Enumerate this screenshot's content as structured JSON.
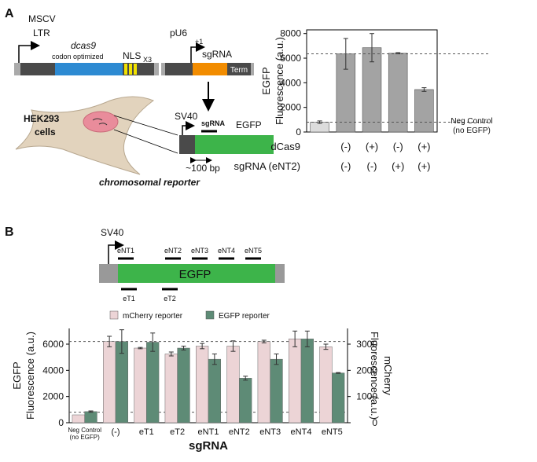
{
  "panel_labels": [
    "A",
    "B"
  ],
  "diagram_a": {
    "promoter_1": [
      "MSCV",
      "LTR"
    ],
    "gene": "dcas9",
    "gene_note": "codon optimized",
    "nls": "NLS",
    "nls_sub": "X3",
    "promoter_2": "pU6",
    "tss": "+1",
    "guide": "sgRNA",
    "terminator": "Term",
    "cell": [
      "HEK293",
      "cells"
    ],
    "promoter_3": "SV40",
    "target": "sgRNA",
    "reporter": "EGFP",
    "distance": "~100 bp",
    "caption": "chromosomal reporter"
  },
  "diagram_b": {
    "promoter": "SV40",
    "reporter": "EGFP",
    "top_targets": [
      "eNT1",
      "eNT2",
      "eNT3",
      "eNT4",
      "eNT5"
    ],
    "bottom_targets": [
      "eT1",
      "eT2"
    ]
  },
  "chart_data": [
    {
      "type": "bar",
      "ylabel": [
        "EGFP",
        "Fluorescence (a.u.)"
      ],
      "category_rows": [
        {
          "name": "dCas9",
          "labels": [
            null,
            "(-)",
            "(+)",
            "(-)",
            "(+)"
          ]
        },
        {
          "name": "sgRNA (eNT2)",
          "labels": [
            null,
            "(-)",
            "(-)",
            "(+)",
            "(+)"
          ]
        }
      ],
      "values": [
        800,
        6350,
        6850,
        6400,
        3450
      ],
      "errors": [
        100,
        1250,
        1150,
        50,
        150
      ],
      "colors": [
        "#dcdcdc",
        "#a3a3a3",
        "#a3a3a3",
        "#a3a3a3",
        "#a3a3a3"
      ],
      "ylim": [
        0,
        8300
      ],
      "yticks": [
        0,
        2000,
        4000,
        6000,
        8000
      ],
      "reference_lines": [
        6350,
        800
      ],
      "annotation": [
        "Neg Control",
        "(no EGFP)"
      ]
    },
    {
      "type": "grouped_bar",
      "xlabel": "sgRNA",
      "ylabel": [
        "EGFP",
        "Fluorescence (a.u.)"
      ],
      "y2label": [
        "mCherry",
        "Fluorescence (a.u.)"
      ],
      "categories": [
        [
          "Neg Control",
          "(no EGFP)"
        ],
        "(-)",
        "eT1",
        "eT2",
        "eNT1",
        "eNT2",
        "eNT3",
        "eNT4",
        "eNT5"
      ],
      "series": [
        {
          "name": "mCherry reporter",
          "color": "#ecd4d6",
          "axis": "y2",
          "values": [
            300,
            3100,
            2850,
            2625,
            2925,
            2925,
            3100,
            3200,
            2900
          ],
          "errors": [
            0,
            200,
            25,
            75,
            100,
            200,
            50,
            300,
            100
          ]
        },
        {
          "name": "EGFP reporter",
          "color": "#5e8b76",
          "values": [
            850,
            6200,
            6150,
            5700,
            4850,
            3400,
            4850,
            6400,
            3800
          ],
          "errors": [
            50,
            900,
            700,
            150,
            400,
            150,
            400,
            600,
            30
          ]
        }
      ],
      "ylim": [
        0,
        7200
      ],
      "yticks": [
        0,
        2000,
        4000,
        6000
      ],
      "y2lim": [
        0,
        3600
      ],
      "y2ticks": [
        0,
        1000,
        2000,
        3000
      ],
      "reference_lines": [
        6200,
        800
      ]
    }
  ]
}
